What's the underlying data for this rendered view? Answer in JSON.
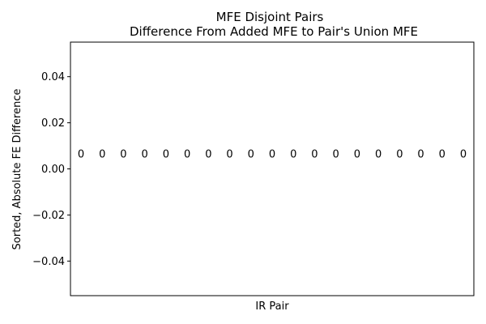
{
  "chart_data": {
    "type": "bar",
    "title": "MFE Disjoint Pairs",
    "subtitle": "Difference From Added MFE to Pair's Union MFE",
    "xlabel": "IR Pair",
    "ylabel": "Sorted, Absolute FE Difference",
    "ylim": [
      -0.055,
      0.055
    ],
    "yticks": [
      -0.04,
      -0.02,
      0.0,
      0.02,
      0.04
    ],
    "ytick_labels": [
      "−0.04",
      "−0.02",
      "0.00",
      "0.02",
      "0.04"
    ],
    "xticks_visible": false,
    "grid": false,
    "values": [
      0,
      0,
      0,
      0,
      0,
      0,
      0,
      0,
      0,
      0,
      0,
      0,
      0,
      0,
      0,
      0,
      0,
      0,
      0
    ],
    "data_labels": [
      "0",
      "0",
      "0",
      "0",
      "0",
      "0",
      "0",
      "0",
      "0",
      "0",
      "0",
      "0",
      "0",
      "0",
      "0",
      "0",
      "0",
      "0",
      "0"
    ]
  }
}
